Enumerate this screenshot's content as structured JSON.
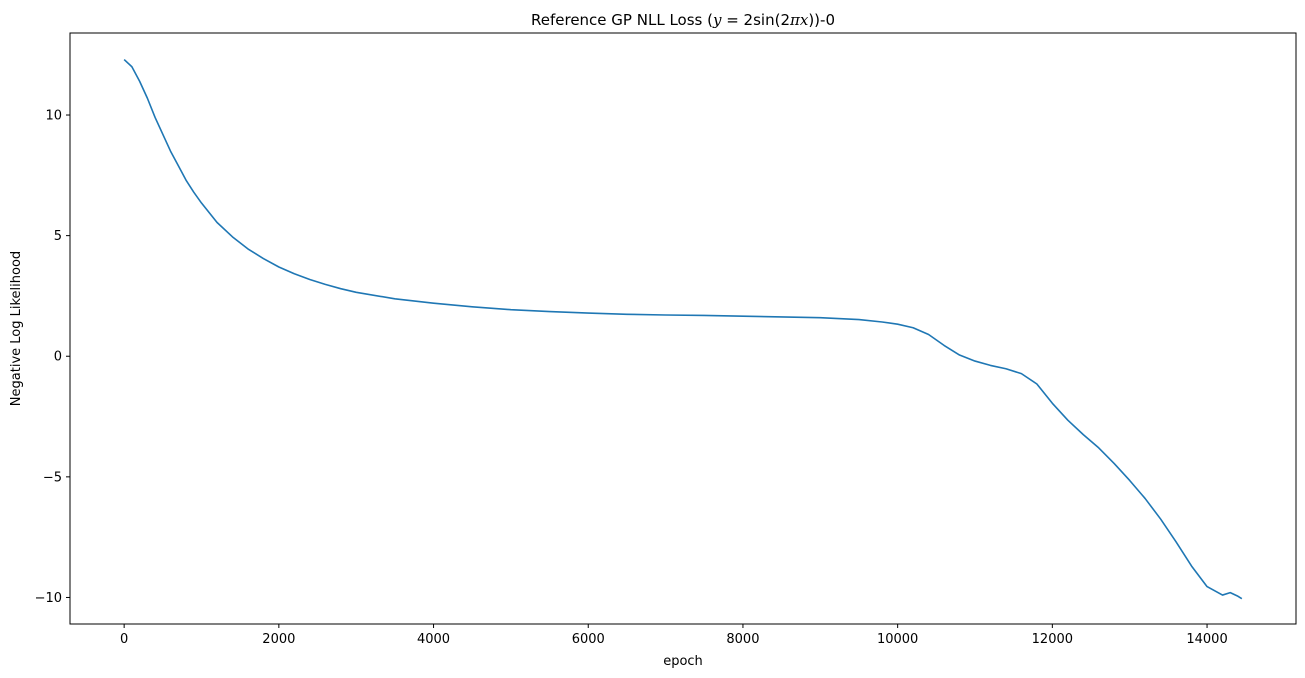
{
  "chart_data": {
    "type": "line",
    "title": {
      "prefix": "Reference GP NLL Loss (",
      "math_y": "y",
      "math_eq": " = 2sin(2",
      "math_pix": "πx",
      "suffix": "))-0"
    },
    "xlabel": "epoch",
    "ylabel": "Negative Log Likelihood",
    "xlim": [
      -700,
      15150
    ],
    "ylim": [
      -11.1,
      13.4
    ],
    "xticks": [
      0,
      2000,
      4000,
      6000,
      8000,
      10000,
      12000,
      14000
    ],
    "yticks": [
      -10,
      -5,
      0,
      5,
      10
    ],
    "ytick_labels": [
      "−10",
      "−5",
      "0",
      "5",
      "10"
    ],
    "grid": false,
    "line_color": "#1f77b4",
    "series": [
      {
        "x": [
          0,
          100,
          200,
          300,
          400,
          500,
          600,
          700,
          800,
          900,
          1000,
          1200,
          1400,
          1600,
          1800,
          2000,
          2200,
          2400,
          2600,
          2800,
          3000,
          3500,
          4000,
          4500,
          5000,
          5500,
          6000,
          6500,
          7000,
          7500,
          8000,
          8500,
          9000,
          9500,
          9800,
          10000,
          10200,
          10400,
          10600,
          10800,
          11000,
          11200,
          11400,
          11600,
          11800,
          12000,
          12200,
          12400,
          12600,
          12800,
          13000,
          13200,
          13400,
          13600,
          13800,
          14000,
          14200,
          14300,
          14400,
          14450
        ],
        "y": [
          12.3,
          12.0,
          11.4,
          10.7,
          9.9,
          9.2,
          8.5,
          7.9,
          7.3,
          6.8,
          6.35,
          5.55,
          4.95,
          4.45,
          4.05,
          3.7,
          3.42,
          3.18,
          2.98,
          2.8,
          2.65,
          2.38,
          2.2,
          2.05,
          1.93,
          1.85,
          1.79,
          1.74,
          1.71,
          1.69,
          1.66,
          1.63,
          1.6,
          1.52,
          1.42,
          1.33,
          1.18,
          0.9,
          0.45,
          0.05,
          -0.2,
          -0.38,
          -0.52,
          -0.72,
          -1.15,
          -1.95,
          -2.65,
          -3.25,
          -3.8,
          -4.45,
          -5.15,
          -5.9,
          -6.75,
          -7.7,
          -8.7,
          -9.55,
          -9.9,
          -9.8,
          -9.95,
          -10.05
        ]
      }
    ]
  }
}
